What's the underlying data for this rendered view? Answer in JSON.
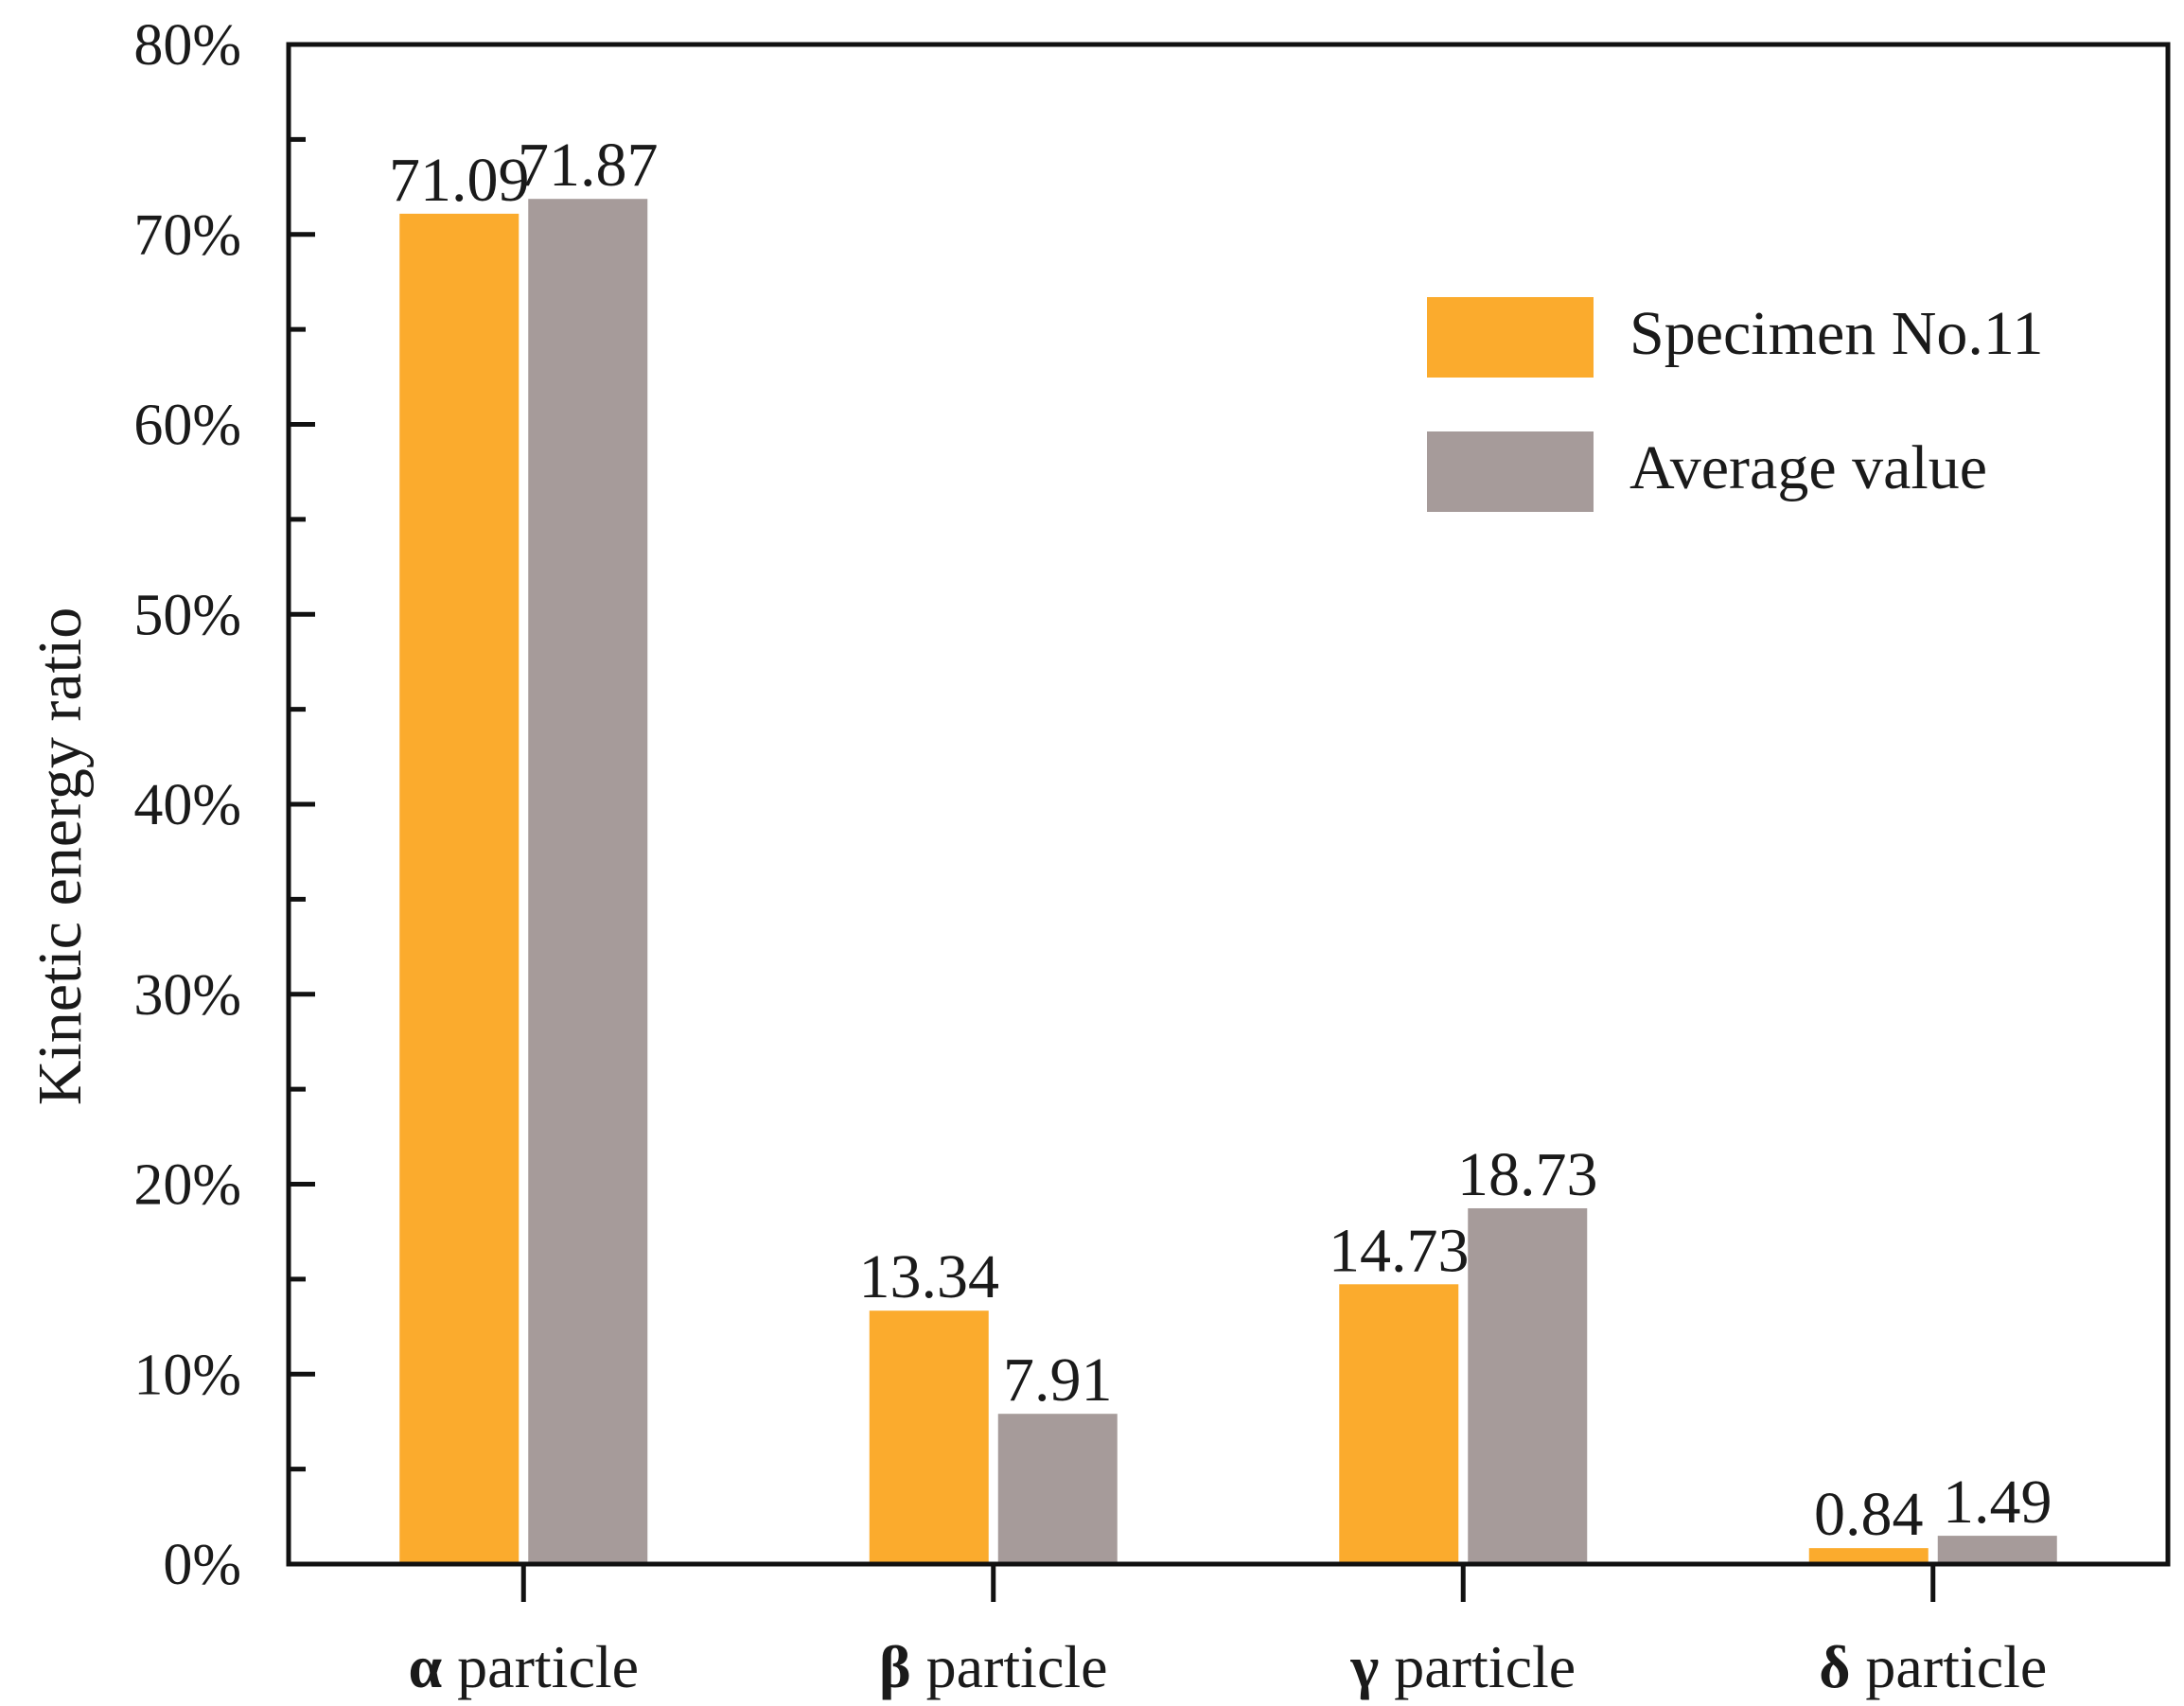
{
  "chart_data": {
    "type": "bar",
    "ylabel": "Kinetic energy ratio",
    "xlabel": "",
    "ylim": [
      0,
      80
    ],
    "y_ticks": [
      "0%",
      "10%",
      "20%",
      "30%",
      "40%",
      "50%",
      "60%",
      "70%",
      "80%"
    ],
    "categories": [
      {
        "symbol": "α",
        "text": " particle"
      },
      {
        "symbol": "β",
        "text": " particle"
      },
      {
        "symbol": "γ",
        "text": " particle"
      },
      {
        "symbol": "δ",
        "text": " particle"
      }
    ],
    "series": [
      {
        "name": "Specimen No.11",
        "color": "#FBAB2D",
        "values": [
          71.09,
          13.34,
          14.73,
          0.84
        ],
        "labels": [
          "71.09",
          "13.34",
          "14.73",
          "0.84"
        ]
      },
      {
        "name": "Average value",
        "color": "#A69B9A",
        "values": [
          71.87,
          7.91,
          18.73,
          1.49
        ],
        "labels": [
          "71.87",
          "7.91",
          "18.73",
          "1.49"
        ]
      }
    ],
    "legend_position": "top-right",
    "grid": false
  }
}
